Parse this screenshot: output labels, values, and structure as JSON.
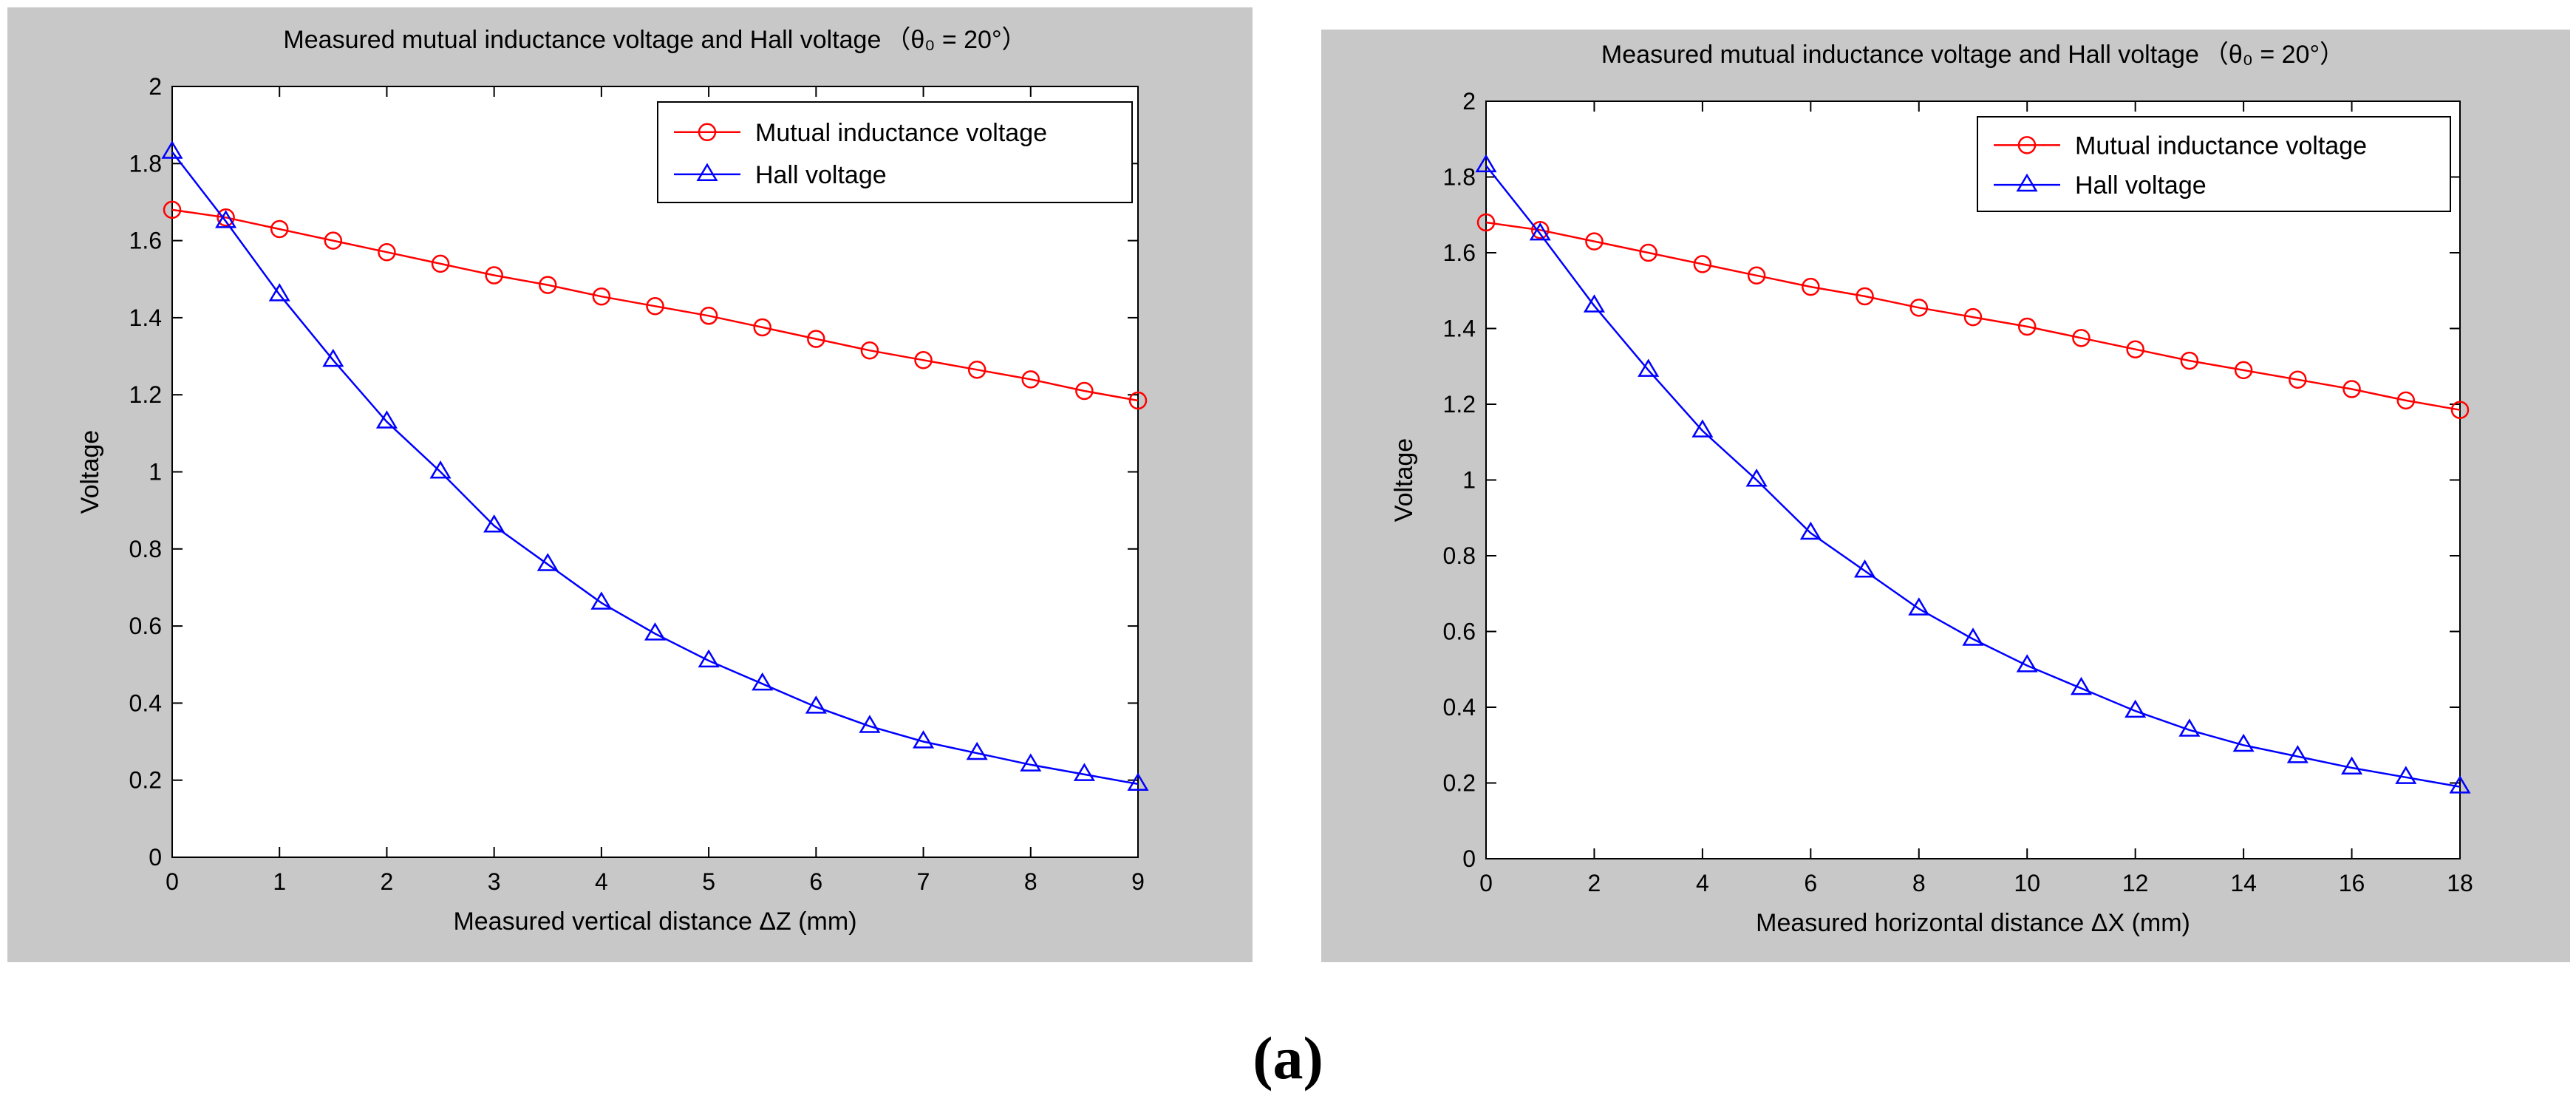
{
  "caption": "(a)",
  "colors": {
    "figure_bg": "#c8c8c8",
    "axes_bg": "#ffffff",
    "mutual": "#ff0000",
    "hall": "#0000ff"
  },
  "chart_data": [
    {
      "type": "line",
      "title": "Measured mutual inductance voltage and Hall voltage",
      "title_suffix": "（θ₀ = 20°）",
      "xlabel": "Measured vertical distance  ΔZ (mm)",
      "ylabel": "Voltage",
      "xlim": [
        0,
        9
      ],
      "ylim": [
        0,
        2
      ],
      "xticks": [
        0,
        1,
        2,
        3,
        4,
        5,
        6,
        7,
        8,
        9
      ],
      "yticks": [
        0,
        0.2,
        0.4,
        0.6,
        0.8,
        1,
        1.2,
        1.4,
        1.6,
        1.8,
        2
      ],
      "ytick_labels": [
        "0",
        "0.2",
        "0.4",
        "0.6",
        "0.8",
        "1",
        "1.2",
        "1.4",
        "1.6",
        "1.8",
        "2"
      ],
      "legend_position": "top-right",
      "x": [
        0,
        0.5,
        1,
        1.5,
        2,
        2.5,
        3,
        3.5,
        4,
        4.5,
        5,
        5.5,
        6,
        6.5,
        7,
        7.5,
        8,
        8.5,
        9
      ],
      "series": [
        {
          "name": "Mutual inductance voltage",
          "marker": "circle",
          "values": [
            1.68,
            1.66,
            1.63,
            1.6,
            1.57,
            1.54,
            1.51,
            1.485,
            1.455,
            1.43,
            1.405,
            1.375,
            1.345,
            1.315,
            1.29,
            1.265,
            1.24,
            1.21,
            1.185
          ]
        },
        {
          "name": "Hall voltage",
          "marker": "triangle",
          "values": [
            1.83,
            1.65,
            1.46,
            1.29,
            1.13,
            1.0,
            0.86,
            0.76,
            0.66,
            0.58,
            0.51,
            0.45,
            0.39,
            0.34,
            0.3,
            0.27,
            0.24,
            0.215,
            0.19
          ]
        }
      ]
    },
    {
      "type": "line",
      "title": "Measured mutual inductance voltage and Hall voltage",
      "title_suffix": "（θ₀ = 20°）",
      "xlabel": "Measured horizontal distance ΔX (mm)",
      "ylabel": "Voltage",
      "xlim": [
        0,
        18
      ],
      "ylim": [
        0,
        2
      ],
      "xticks": [
        0,
        2,
        4,
        6,
        8,
        10,
        12,
        14,
        16,
        18
      ],
      "yticks": [
        0,
        0.2,
        0.4,
        0.6,
        0.8,
        1,
        1.2,
        1.4,
        1.6,
        1.8,
        2
      ],
      "ytick_labels": [
        "0",
        "0.2",
        "0.4",
        "0.6",
        "0.8",
        "1",
        "1.2",
        "1.4",
        "1.6",
        "1.8",
        "2"
      ],
      "legend_position": "top-right",
      "x": [
        0,
        1,
        2,
        3,
        4,
        5,
        6,
        7,
        8,
        9,
        10,
        11,
        12,
        13,
        14,
        15,
        16,
        17,
        18
      ],
      "series": [
        {
          "name": "Mutual inductance voltage",
          "marker": "circle",
          "values": [
            1.68,
            1.66,
            1.63,
            1.6,
            1.57,
            1.54,
            1.51,
            1.485,
            1.455,
            1.43,
            1.405,
            1.375,
            1.345,
            1.315,
            1.29,
            1.265,
            1.24,
            1.21,
            1.185
          ]
        },
        {
          "name": "Hall voltage",
          "marker": "triangle",
          "values": [
            1.83,
            1.65,
            1.46,
            1.29,
            1.13,
            1.0,
            0.86,
            0.76,
            0.66,
            0.58,
            0.51,
            0.45,
            0.39,
            0.34,
            0.3,
            0.27,
            0.24,
            0.215,
            0.19
          ]
        }
      ]
    }
  ]
}
